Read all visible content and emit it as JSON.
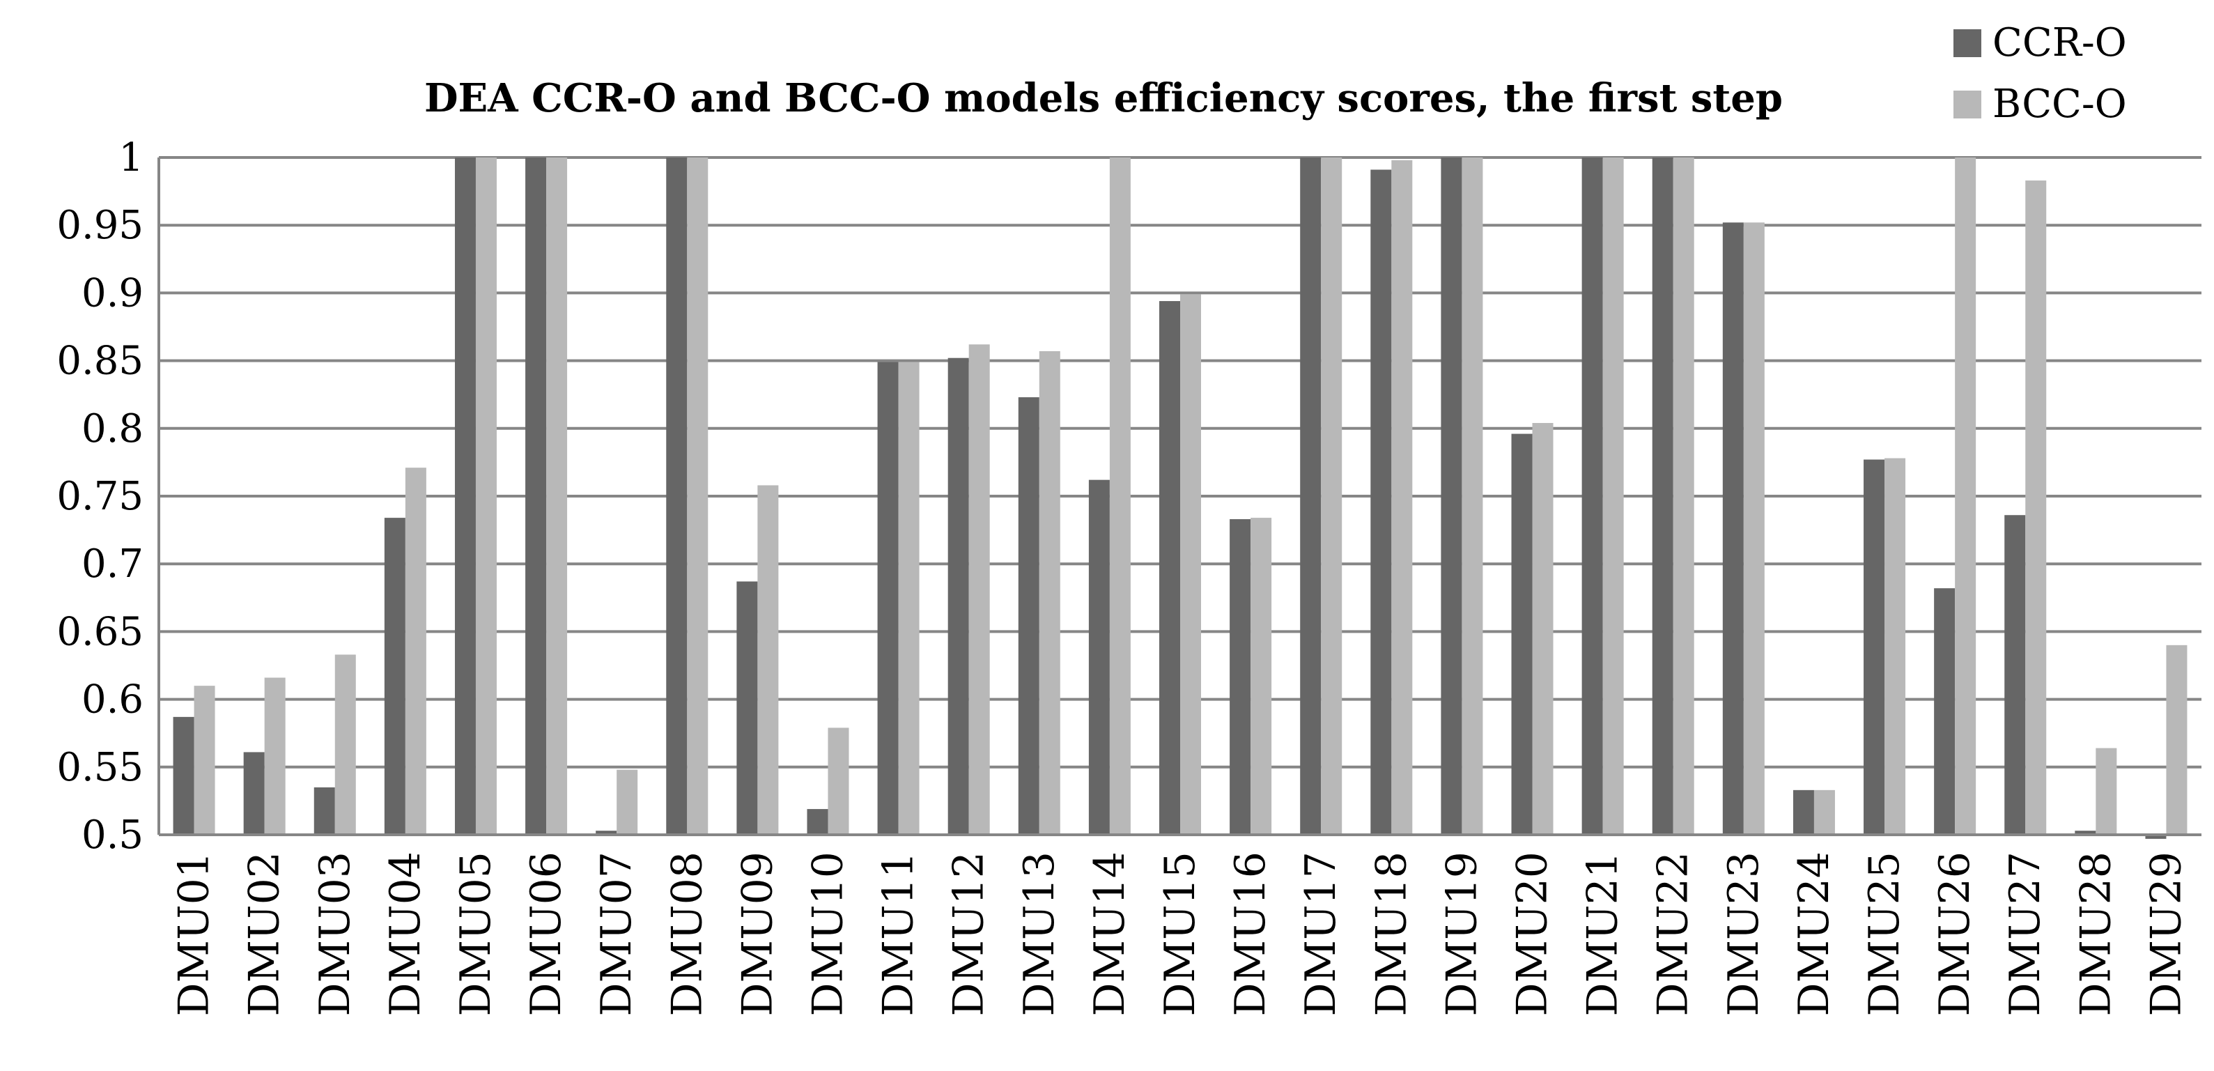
{
  "chart_data": {
    "type": "bar",
    "title": "DEA CCR-O and BCC-O models efficiency scores, the first step",
    "xlabel": "",
    "ylabel": "",
    "ylim": [
      0.5,
      1
    ],
    "yticks": [
      0.5,
      0.55,
      0.6,
      0.65,
      0.7,
      0.75,
      0.8,
      0.85,
      0.9,
      0.95,
      1
    ],
    "ytick_labels": [
      "0.5",
      "0.55",
      "0.6",
      "0.65",
      "0.7",
      "0.75",
      "0.8",
      "0.85",
      "0.9",
      "0.95",
      "1"
    ],
    "grid": true,
    "legend_position": "top-right",
    "categories": [
      "DMU01",
      "DMU02",
      "DMU03",
      "DMU04",
      "DMU05",
      "DMU06",
      "DMU07",
      "DMU08",
      "DMU09",
      "DMU10",
      "DMU11",
      "DMU12",
      "DMU13",
      "DMU14",
      "DMU15",
      "DMU16",
      "DMU17",
      "DMU18",
      "DMU19",
      "DMU20",
      "DMU21",
      "DMU22",
      "DMU23",
      "DMU24",
      "DMU25",
      "DMU26",
      "DMU27",
      "DMU28",
      "DMU29"
    ],
    "series": [
      {
        "name": "CCR-O",
        "color": "#666666",
        "values": [
          0.587,
          0.561,
          0.535,
          0.734,
          1.0,
          1.0,
          0.503,
          1.0,
          0.687,
          0.519,
          0.849,
          0.852,
          0.823,
          0.762,
          0.894,
          0.733,
          1.0,
          0.991,
          1.0,
          0.796,
          1.0,
          1.0,
          0.952,
          0.533,
          0.777,
          0.682,
          0.736,
          0.503,
          0.497
        ]
      },
      {
        "name": "BCC-O",
        "color": "#b8b8b8",
        "values": [
          0.61,
          0.616,
          0.633,
          0.771,
          1.0,
          1.0,
          0.548,
          1.0,
          0.758,
          0.579,
          0.849,
          0.862,
          0.857,
          1.0,
          0.899,
          0.734,
          1.0,
          0.998,
          1.0,
          0.804,
          1.0,
          1.0,
          0.952,
          0.533,
          0.778,
          1.0,
          0.983,
          0.564,
          0.64
        ]
      }
    ]
  }
}
